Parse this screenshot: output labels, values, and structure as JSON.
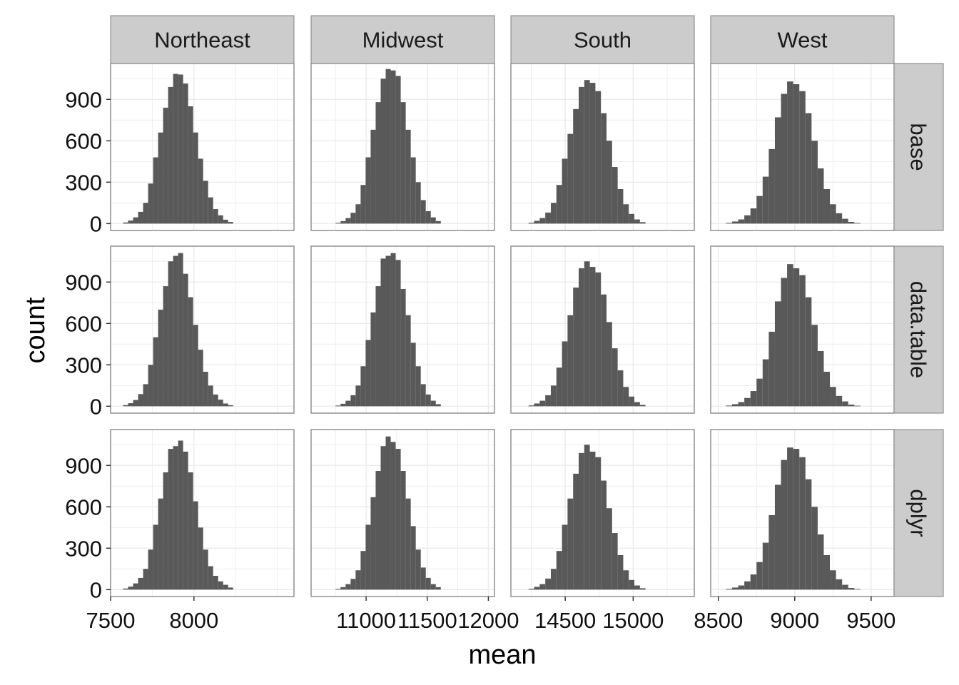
{
  "chart_data": {
    "type": "bar",
    "subtype": "faceted-histogram",
    "title": "",
    "xlabel": "mean",
    "ylabel": "count",
    "facet_columns": [
      "Northeast",
      "Midwest",
      "South",
      "West"
    ],
    "facet_rows": [
      "base",
      "data.table",
      "dplyr"
    ],
    "y_ticks": [
      0,
      300,
      600,
      900
    ],
    "ylim": [
      -50,
      1160
    ],
    "grid": true,
    "colors": {
      "bar": "#595959",
      "strip": "#cccccc",
      "panel_border": "#7f7f7f",
      "grid": "#ebebeb"
    },
    "columns": [
      {
        "name": "Northeast",
        "xlim": [
          7500,
          8600
        ],
        "x_ticks": [
          7500,
          8000
        ],
        "x_tick_labels": [
          "7500",
          "8000"
        ],
        "bins": {
          "start": 7575,
          "width": 30,
          "rows": [
            [
              8,
              22,
              45,
              85,
              150,
              290,
              480,
              660,
              840,
              990,
              1085,
              1080,
              1015,
              850,
              660,
              470,
              310,
              190,
              105,
              60,
              28,
              12
            ],
            [
              8,
              22,
              45,
              88,
              160,
              300,
              500,
              700,
              870,
              1050,
              1090,
              1110,
              960,
              790,
              590,
              410,
              250,
              150,
              85,
              48,
              20,
              8
            ],
            [
              8,
              22,
              45,
              85,
              150,
              290,
              470,
              660,
              850,
              1020,
              1040,
              1080,
              1000,
              850,
              640,
              450,
              290,
              170,
              100,
              60,
              35,
              15
            ]
          ]
        }
      },
      {
        "name": "Midwest",
        "xlim": [
          10550,
          12050
        ],
        "x_ticks": [
          11000,
          11500,
          12000
        ],
        "x_tick_labels": [
          "11000",
          "11500",
          "12000"
        ],
        "bins": {
          "start": 10750,
          "width": 41,
          "rows": [
            [
              5,
              18,
              40,
              78,
              140,
              280,
              480,
              680,
              880,
              1050,
              1120,
              1110,
              1070,
              880,
              680,
              480,
              300,
              170,
              90,
              45,
              18
            ],
            [
              5,
              18,
              40,
              80,
              150,
              290,
              480,
              680,
              870,
              1070,
              1090,
              1110,
              1060,
              850,
              660,
              460,
              290,
              160,
              85,
              40,
              15
            ],
            [
              5,
              18,
              40,
              78,
              140,
              280,
              470,
              670,
              860,
              1040,
              1110,
              1070,
              1020,
              860,
              660,
              460,
              290,
              160,
              85,
              40,
              18
            ]
          ]
        }
      },
      {
        "name": "South",
        "xlim": [
          14100,
          15450
        ],
        "x_ticks": [
          14500,
          15000
        ],
        "x_tick_labels": [
          "14500",
          "15000"
        ],
        "bins": {
          "start": 14230,
          "width": 41,
          "rows": [
            [
              6,
              20,
              40,
              80,
              150,
              280,
              470,
              650,
              830,
              990,
              1040,
              1020,
              960,
              800,
              600,
              410,
              250,
              140,
              70,
              30,
              10
            ],
            [
              6,
              20,
              40,
              80,
              150,
              280,
              470,
              660,
              860,
              1000,
              1050,
              1010,
              970,
              810,
              610,
              420,
              260,
              140,
              70,
              30,
              10
            ],
            [
              6,
              20,
              40,
              80,
              150,
              280,
              470,
              660,
              840,
              990,
              1050,
              1000,
              960,
              790,
              590,
              410,
              250,
              140,
              70,
              30,
              10
            ]
          ]
        }
      },
      {
        "name": "West",
        "xlim": [
          8450,
          9650
        ],
        "x_ticks": [
          8500,
          9000,
          9500
        ],
        "x_tick_labels": [
          "8500",
          "9000",
          "9500"
        ],
        "bins": {
          "start": 8550,
          "width": 40,
          "rows": [
            [
              5,
              15,
              30,
              60,
              110,
              200,
              340,
              540,
              770,
              940,
              1030,
              1010,
              960,
              800,
              600,
              400,
              250,
              140,
              75,
              35,
              12,
              4
            ],
            [
              5,
              15,
              30,
              60,
              110,
              200,
              340,
              540,
              760,
              930,
              1030,
              1000,
              950,
              790,
              590,
              400,
              250,
              140,
              75,
              35,
              12,
              4
            ],
            [
              5,
              15,
              30,
              60,
              110,
              200,
              340,
              540,
              760,
              940,
              1030,
              1020,
              960,
              800,
              600,
              400,
              250,
              140,
              75,
              35,
              12,
              4
            ]
          ]
        }
      }
    ]
  }
}
